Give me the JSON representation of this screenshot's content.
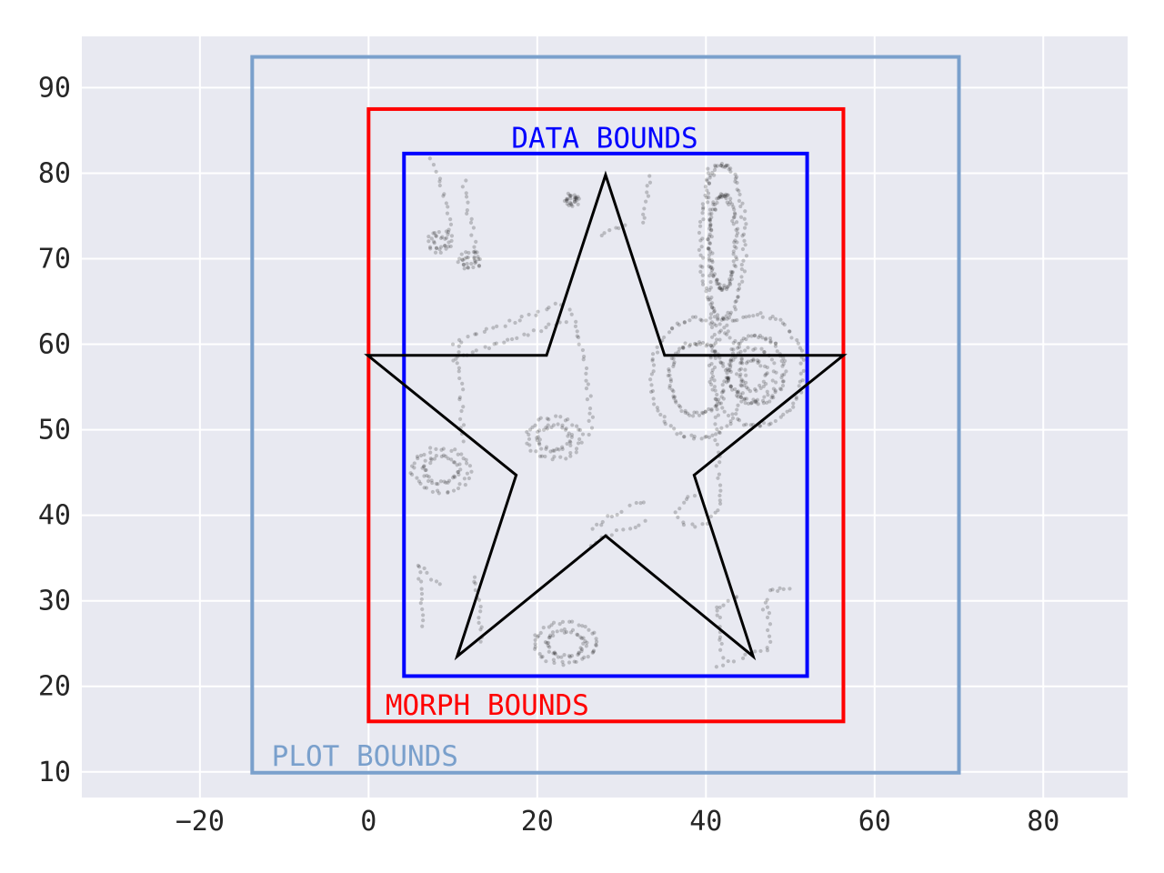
{
  "chart_data": {
    "type": "scatter",
    "xlim": [
      -34,
      90
    ],
    "ylim": [
      7,
      96
    ],
    "grid": true,
    "background": "#e8e9f1",
    "grid_color": "#ffffff",
    "x_ticks": [
      {
        "value": -20,
        "label": "−20"
      },
      {
        "value": 0,
        "label": "0"
      },
      {
        "value": 20,
        "label": "20"
      },
      {
        "value": 40,
        "label": "40"
      },
      {
        "value": 60,
        "label": "60"
      },
      {
        "value": 80,
        "label": "80"
      }
    ],
    "y_ticks": [
      {
        "value": 10,
        "label": "10"
      },
      {
        "value": 20,
        "label": "20"
      },
      {
        "value": 30,
        "label": "30"
      },
      {
        "value": 40,
        "label": "40"
      },
      {
        "value": 50,
        "label": "50"
      },
      {
        "value": 60,
        "label": "60"
      },
      {
        "value": 70,
        "label": "70"
      },
      {
        "value": 80,
        "label": "80"
      },
      {
        "value": 90,
        "label": "90"
      }
    ],
    "boxes": [
      {
        "key": "plot-bounds",
        "text": "PLOT BOUNDS",
        "color": "#7aa0cc",
        "x0": -13.8,
        "x1": 70.0,
        "y0": 9.9,
        "y1": 93.6,
        "label_x": -11.5,
        "label_y": 10.7,
        "label_anchor": "start"
      },
      {
        "key": "morph-bounds",
        "text": "MORPH BOUNDS",
        "color": "#ff0000",
        "x0": 0.0,
        "x1": 56.3,
        "y0": 15.9,
        "y1": 87.5,
        "label_x": 2.0,
        "label_y": 16.7,
        "label_anchor": "start"
      },
      {
        "key": "data-bounds",
        "text": "DATA BOUNDS",
        "color": "#0000ff",
        "x0": 4.2,
        "x1": 52.0,
        "y0": 21.2,
        "y1": 82.3,
        "label_x": 28.0,
        "label_y": 83.0,
        "label_anchor": "middle"
      }
    ],
    "star": {
      "color": "#000000",
      "points": [
        [
          28.1,
          79.8
        ],
        [
          35.1,
          58.7
        ],
        [
          56.3,
          58.7
        ],
        [
          38.6,
          44.7
        ],
        [
          45.6,
          23.5
        ],
        [
          28.1,
          37.6
        ],
        [
          10.5,
          23.5
        ],
        [
          17.5,
          44.7
        ],
        [
          -0.1,
          58.7
        ],
        [
          21.1,
          58.7
        ]
      ]
    },
    "scatter_shapes": [
      {
        "kind": "polyline",
        "points": [
          [
            7.5,
            81.5
          ],
          [
            8.5,
            79.0
          ],
          [
            9.3,
            76.5
          ],
          [
            9.6,
            74.0
          ],
          [
            9.7,
            72.5
          ]
        ]
      },
      {
        "kind": "ellipse",
        "cx": 8.5,
        "cy": 72.0,
        "rx": 1.4,
        "ry": 1.2
      },
      {
        "kind": "polyline",
        "points": [
          [
            11.3,
            79.0
          ],
          [
            11.7,
            76.5
          ],
          [
            12.1,
            74.0
          ],
          [
            12.6,
            71.5
          ],
          [
            12.8,
            70.0
          ]
        ]
      },
      {
        "kind": "ellipse",
        "cx": 12.1,
        "cy": 69.8,
        "rx": 1.3,
        "ry": 1.0
      },
      {
        "kind": "polyline",
        "points": [
          [
            10.0,
            60.0
          ],
          [
            13.0,
            61.2
          ],
          [
            16.0,
            62.3
          ],
          [
            19.0,
            63.3
          ],
          [
            21.0,
            64.2
          ],
          [
            23.5,
            65.0
          ]
        ]
      },
      {
        "kind": "polyline",
        "points": [
          [
            10.0,
            58.0
          ],
          [
            13.0,
            59.2
          ],
          [
            16.0,
            60.3
          ],
          [
            19.0,
            61.3
          ],
          [
            21.5,
            62.2
          ],
          [
            24.0,
            63.0
          ]
        ]
      },
      {
        "kind": "polyline",
        "points": [
          [
            10.5,
            59.5
          ],
          [
            10.9,
            56.0
          ],
          [
            11.1,
            52.0
          ],
          [
            11.2,
            48.0
          ]
        ]
      },
      {
        "kind": "polyline",
        "points": [
          [
            24.0,
            64.0
          ],
          [
            25.2,
            60.0
          ],
          [
            25.9,
            56.0
          ],
          [
            26.3,
            52.0
          ],
          [
            26.4,
            49.0
          ]
        ]
      },
      {
        "kind": "ellipse",
        "cx": 22.0,
        "cy": 49.0,
        "rx": 3.2,
        "ry": 2.4
      },
      {
        "kind": "ellipse",
        "cx": 8.6,
        "cy": 45.3,
        "rx": 3.4,
        "ry": 2.5
      },
      {
        "kind": "ellipse",
        "cx": 23.4,
        "cy": 25.0,
        "rx": 3.7,
        "ry": 2.4
      },
      {
        "kind": "polyline",
        "points": [
          [
            30.4,
            74.0
          ],
          [
            28.6,
            73.2
          ],
          [
            26.8,
            72.8
          ]
        ]
      },
      {
        "kind": "ellipse",
        "cx": 24.1,
        "cy": 76.8,
        "rx": 0.8,
        "ry": 0.6
      },
      {
        "kind": "polyline",
        "points": [
          [
            32.3,
            74.2
          ],
          [
            33.0,
            76.5
          ],
          [
            33.2,
            78.5
          ],
          [
            33.6,
            80.0
          ]
        ]
      },
      {
        "kind": "polyline",
        "points": [
          [
            26.5,
            38.5
          ],
          [
            29.0,
            40.0
          ],
          [
            31.5,
            41.2
          ],
          [
            33.5,
            41.8
          ]
        ]
      },
      {
        "kind": "polyline",
        "points": [
          [
            26.5,
            36.5
          ],
          [
            29.0,
            37.8
          ],
          [
            31.5,
            38.8
          ],
          [
            33.5,
            39.5
          ]
        ]
      },
      {
        "kind": "ellipse",
        "cx": 42.0,
        "cy": 72.0,
        "rx": 2.6,
        "ry": 9.0
      },
      {
        "kind": "ellipse",
        "cx": 39.0,
        "cy": 56.0,
        "rx": 5.5,
        "ry": 7.0
      },
      {
        "kind": "ellipse",
        "cx": 46.0,
        "cy": 57.0,
        "rx": 5.5,
        "ry": 6.5
      },
      {
        "kind": "ellipse",
        "cx": 45.5,
        "cy": 56.5,
        "rx": 2.7,
        "ry": 3.0
      },
      {
        "kind": "polyline",
        "points": [
          [
            40.3,
            80.5
          ],
          [
            40.5,
            70.0
          ],
          [
            40.9,
            60.0
          ],
          [
            41.3,
            50.0
          ],
          [
            41.7,
            40.5
          ]
        ]
      },
      {
        "kind": "polyline",
        "points": [
          [
            41.5,
            40.5
          ],
          [
            39.5,
            38.8
          ],
          [
            37.5,
            38.8
          ],
          [
            36.5,
            40.5
          ],
          [
            37.5,
            42.0
          ],
          [
            39.3,
            42.5
          ]
        ]
      },
      {
        "kind": "polyline",
        "points": [
          [
            6.0,
            34.0
          ],
          [
            6.2,
            31.0
          ],
          [
            6.4,
            28.5
          ],
          [
            6.5,
            26.5
          ]
        ]
      },
      {
        "kind": "polyline",
        "points": [
          [
            6.0,
            34.0
          ],
          [
            7.3,
            32.6
          ],
          [
            8.8,
            31.6
          ]
        ]
      },
      {
        "kind": "polyline",
        "points": [
          [
            12.5,
            33.0
          ],
          [
            13.0,
            30.0
          ],
          [
            13.4,
            27.0
          ],
          [
            13.5,
            24.5
          ]
        ]
      },
      {
        "kind": "polyline",
        "points": [
          [
            41.5,
            29.0
          ],
          [
            42.7,
            30.0
          ],
          [
            44.5,
            30.6
          ]
        ]
      },
      {
        "kind": "polyline",
        "points": [
          [
            41.3,
            29.0
          ],
          [
            41.6,
            26.0
          ],
          [
            41.9,
            23.0
          ]
        ]
      },
      {
        "kind": "polyline",
        "points": [
          [
            41.5,
            22.5
          ],
          [
            43.5,
            23.0
          ],
          [
            45.5,
            23.8
          ],
          [
            46.6,
            24.5
          ]
        ]
      },
      {
        "kind": "polyline",
        "points": [
          [
            47.0,
            29.0
          ],
          [
            47.7,
            31.0
          ],
          [
            49.0,
            31.6
          ],
          [
            50.3,
            31.4
          ]
        ]
      },
      {
        "kind": "polyline",
        "points": [
          [
            47.3,
            29.0
          ],
          [
            47.4,
            26.0
          ],
          [
            47.5,
            23.5
          ]
        ]
      }
    ]
  }
}
